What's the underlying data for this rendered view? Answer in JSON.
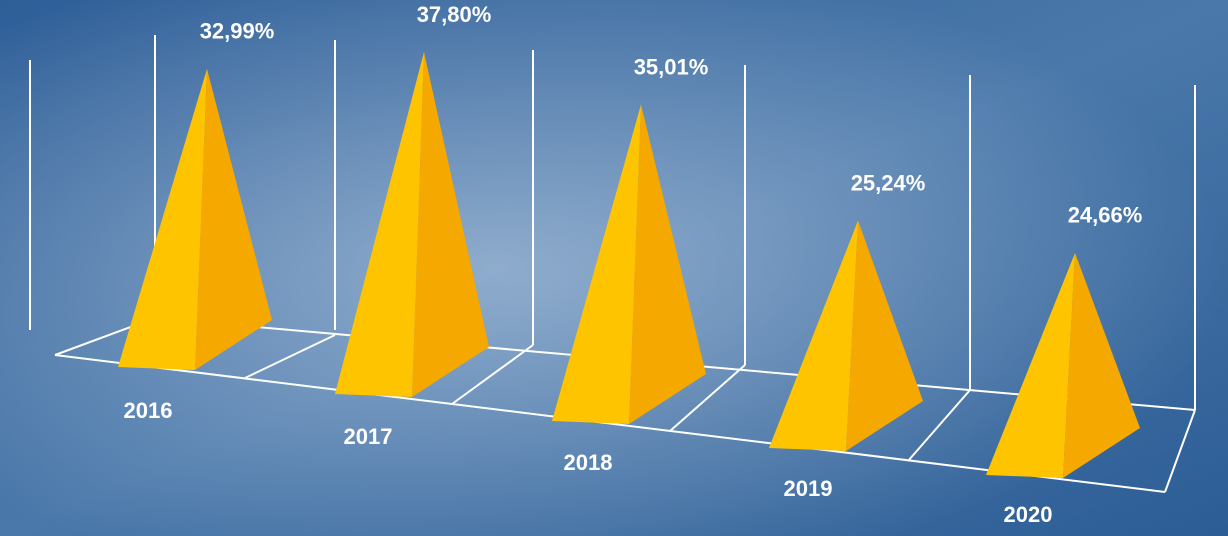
{
  "chart_data": {
    "type": "pyramid",
    "categories": [
      "2016",
      "2017",
      "2018",
      "2019",
      "2020"
    ],
    "values": [
      32.99,
      37.8,
      35.01,
      25.24,
      24.66
    ],
    "value_labels": [
      "32,99%",
      "37,80%",
      "35,01%",
      "25,24%",
      "24,66%"
    ],
    "color": "#ffc400"
  }
}
